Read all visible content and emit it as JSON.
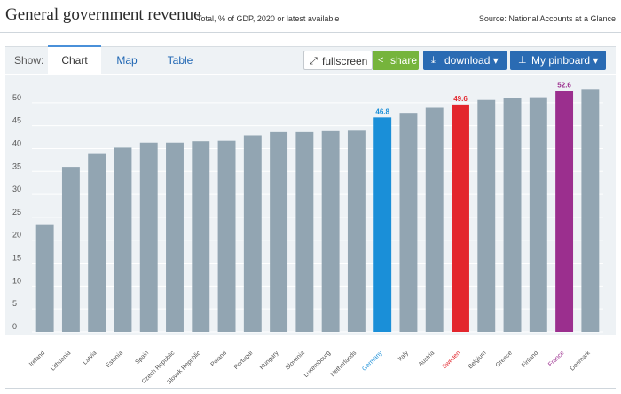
{
  "header": {
    "title": "General government revenue",
    "subtitle": "Total, % of GDP, 2020 or latest available",
    "source": "Source: National Accounts at a Glance"
  },
  "toolbar": {
    "show_label": "Show:",
    "tabs": [
      "Chart",
      "Map",
      "Table"
    ],
    "fullscreen_label": "fullscreen",
    "share_label": "share",
    "download_label": "download ▾",
    "pinboard_label": "My pinboard ▾"
  },
  "colors": {
    "default_bar": "#92a5b2",
    "germany": "#1a8fd8",
    "sweden": "#e3262d",
    "france": "#9b2f8e",
    "grid": "#ffffff",
    "axis_text": "#555555"
  },
  "chart_data": {
    "type": "bar",
    "title": "General government revenue",
    "subtitle": "Total, % of GDP, 2020 or latest available",
    "categories": [
      "Ireland",
      "Lithuania",
      "Latvia",
      "Estonia",
      "Spain",
      "Czech Republic",
      "Slovak Republic",
      "Poland",
      "Portugal",
      "Hungary",
      "Slovenia",
      "Luxembourg",
      "Netherlands",
      "Germany",
      "Italy",
      "Austria",
      "Sweden",
      "Belgium",
      "Greece",
      "Finland",
      "France",
      "Denmark"
    ],
    "values": [
      23.5,
      36.0,
      39.0,
      40.2,
      41.3,
      41.3,
      41.6,
      41.7,
      42.9,
      43.6,
      43.6,
      43.8,
      43.9,
      46.8,
      47.8,
      48.9,
      49.6,
      50.6,
      51.0,
      51.2,
      52.6,
      53.0
    ],
    "highlighted": [
      {
        "category": "Germany",
        "label": "46.8",
        "color": "#1a8fd8"
      },
      {
        "category": "Sweden",
        "label": "49.6",
        "color": "#e3262d"
      },
      {
        "category": "France",
        "label": "52.6",
        "color": "#9b2f8e"
      }
    ],
    "yticks": [
      0,
      5,
      10,
      15,
      20,
      25,
      30,
      35,
      40,
      45,
      50
    ],
    "ylim": [
      0,
      55
    ],
    "grid": true
  }
}
